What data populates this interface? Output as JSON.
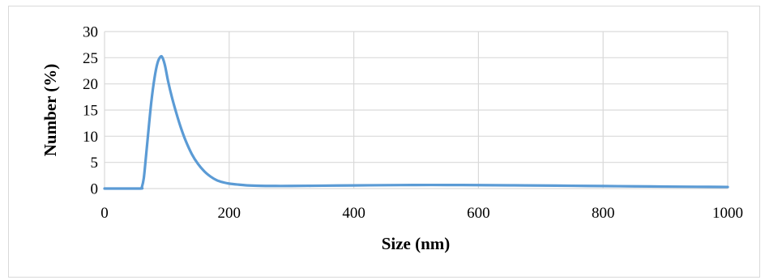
{
  "chart_data": {
    "type": "line",
    "title": "",
    "xlabel": "Size (nm)",
    "ylabel": "Number (%)",
    "xlim": [
      0,
      1000
    ],
    "ylim": [
      0,
      30
    ],
    "x_ticks": [
      "0",
      "200",
      "400",
      "600",
      "800",
      "1000"
    ],
    "y_ticks": [
      "0",
      "5",
      "10",
      "15",
      "20",
      "25",
      "30"
    ],
    "grid": true,
    "legend": "none",
    "series": [
      {
        "color": "#5b9bd5",
        "x": [
          0,
          30,
          58,
          60,
          63,
          66,
          70,
          75,
          80,
          85,
          90,
          93,
          97,
          102,
          108,
          115,
          122,
          130,
          140,
          150,
          160,
          170,
          180,
          190,
          200,
          215,
          230,
          250,
          275,
          300,
          350,
          400,
          450,
          500,
          550,
          600,
          650,
          700,
          750,
          800,
          850,
          900,
          950,
          1000
        ],
        "y": [
          0,
          0,
          0,
          0.3,
          2,
          5.5,
          10.5,
          16.5,
          21,
          24,
          25.2,
          25,
          23.5,
          20.5,
          17.5,
          14.5,
          11.8,
          9.2,
          6.6,
          4.7,
          3.3,
          2.3,
          1.6,
          1.2,
          0.95,
          0.75,
          0.6,
          0.52,
          0.5,
          0.5,
          0.55,
          0.6,
          0.65,
          0.68,
          0.68,
          0.66,
          0.62,
          0.58,
          0.53,
          0.48,
          0.43,
          0.38,
          0.34,
          0.3
        ]
      }
    ]
  }
}
